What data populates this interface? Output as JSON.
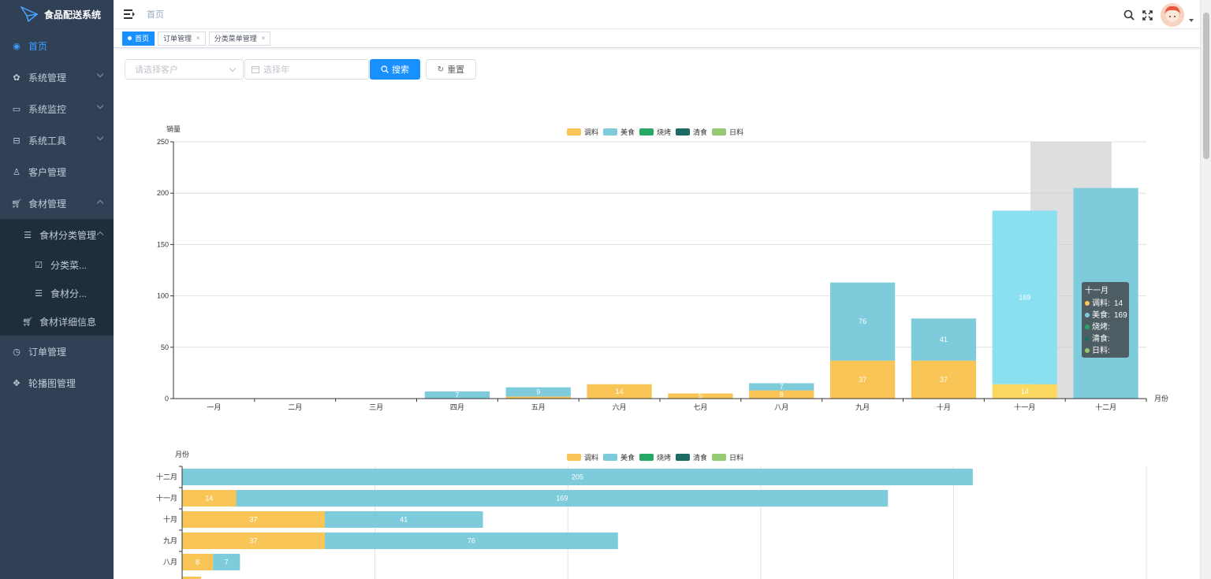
{
  "app": {
    "title": "食品配送系统"
  },
  "sidebar": {
    "items": [
      {
        "label": "首页",
        "icon": "dashboard-icon"
      },
      {
        "label": "系统管理",
        "icon": "gear-icon"
      },
      {
        "label": "系统监控",
        "icon": "monitor-icon"
      },
      {
        "label": "系统工具",
        "icon": "toolbox-icon"
      },
      {
        "label": "客户管理",
        "icon": "user-icon"
      },
      {
        "label": "食材管理",
        "icon": "cart-icon"
      },
      {
        "label": "食材分类管理",
        "icon": "list-icon"
      },
      {
        "label": "分类菜...",
        "icon": "checkbox-icon"
      },
      {
        "label": "食材分...",
        "icon": "list-icon"
      },
      {
        "label": "食材详细信息",
        "icon": "cart-icon"
      },
      {
        "label": "订单管理",
        "icon": "clock-icon"
      },
      {
        "label": "轮播图管理",
        "icon": "move-icon"
      }
    ]
  },
  "header": {
    "breadcrumb": "首页"
  },
  "tags": [
    {
      "label": "首页"
    },
    {
      "label": "订单管理",
      "close": "×"
    },
    {
      "label": "分类菜单管理",
      "close": "×"
    }
  ],
  "filter": {
    "customer_placeholder": "请选择客户",
    "year_placeholder": "选择年",
    "search_label": "搜索",
    "reset_label": "重置"
  },
  "colors": {
    "调料": "#f8c556",
    "美食": "#7ecbdc",
    "烧烤": "#27a966",
    "清食": "#1e6b63",
    "日料": "#95c972"
  },
  "chart_data": [
    {
      "type": "bar",
      "stacked": true,
      "ylabel": "销量",
      "xlabel": "月份",
      "ylim": [
        0,
        250
      ],
      "yticks": [
        0,
        50,
        100,
        150,
        200,
        250
      ],
      "categories": [
        "一月",
        "二月",
        "三月",
        "四月",
        "五月",
        "六月",
        "七月",
        "八月",
        "九月",
        "十月",
        "十一月",
        "十二月"
      ],
      "series": [
        {
          "name": "调料",
          "values": [
            0,
            0,
            0,
            0,
            2,
            14,
            5,
            8,
            37,
            37,
            14,
            0
          ],
          "labels": [
            "",
            "",
            "",
            "",
            "",
            "14",
            "5",
            "8",
            "37",
            "37",
            "14",
            ""
          ]
        },
        {
          "name": "美食",
          "values": [
            0,
            0,
            0,
            7,
            9,
            0,
            0,
            7,
            76,
            41,
            169,
            205
          ],
          "labels": [
            "",
            "",
            "",
            "7",
            "9",
            "",
            "",
            "7",
            "76",
            "41",
            "169",
            ""
          ]
        },
        {
          "name": "烧烤",
          "values": [
            0,
            0,
            0,
            0,
            0,
            0,
            0,
            0,
            0,
            0,
            0,
            0
          ]
        },
        {
          "name": "清食",
          "values": [
            0,
            0,
            0,
            0,
            0,
            0,
            0,
            0,
            0,
            0,
            0,
            0
          ]
        },
        {
          "name": "日料",
          "values": [
            0,
            0,
            0,
            0,
            0,
            0,
            0,
            0,
            0,
            0,
            0,
            0
          ]
        }
      ],
      "legend": "top-center",
      "highlight": "十一月",
      "tooltip": {
        "title": "十一月",
        "rows": [
          {
            "name": "调料",
            "value": "14"
          },
          {
            "name": "美食",
            "value": "169"
          },
          {
            "name": "烧烤",
            "value": ""
          },
          {
            "name": "清食",
            "value": ""
          },
          {
            "name": "日料",
            "value": ""
          }
        ]
      }
    },
    {
      "type": "bar",
      "orientation": "horizontal",
      "stacked": true,
      "ylabel": "月份",
      "categories": [
        "十二月",
        "十一月",
        "十月",
        "九月",
        "八月"
      ],
      "series": [
        {
          "name": "调料",
          "values": [
            0,
            14,
            37,
            37,
            8
          ]
        },
        {
          "name": "美食",
          "values": [
            205,
            169,
            41,
            76,
            7
          ]
        },
        {
          "name": "烧烤",
          "values": [
            0,
            0,
            0,
            0,
            0
          ]
        },
        {
          "name": "清食",
          "values": [
            0,
            0,
            0,
            0,
            0
          ]
        },
        {
          "name": "日料",
          "values": [
            0,
            0,
            0,
            0,
            0
          ]
        }
      ],
      "xlim": [
        0,
        250
      ],
      "legend": "top-center"
    }
  ]
}
